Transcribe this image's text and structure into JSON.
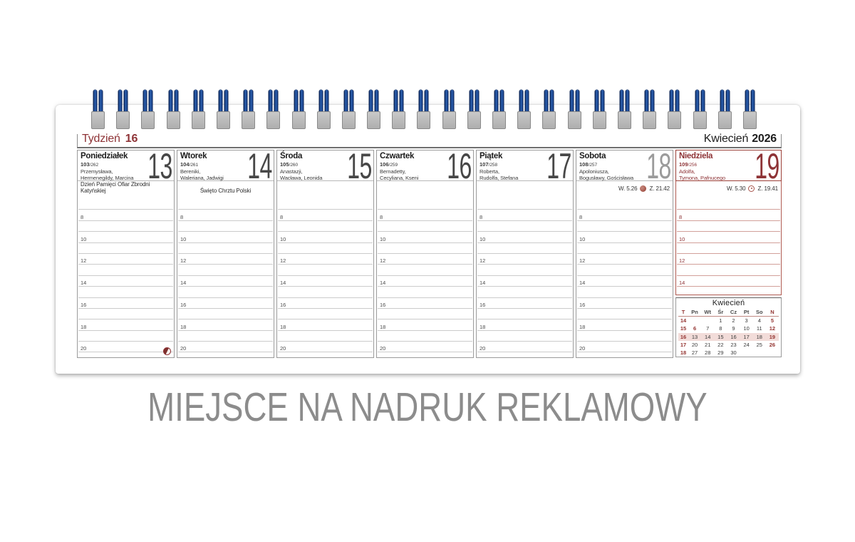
{
  "page": {
    "bottom_text": "MIEJSCE NA NADRUK REKLAMOWY"
  },
  "binding": {
    "coil_count": 27
  },
  "header": {
    "week_label": "Tydzień",
    "week_number": "16",
    "month_label": "Kwiecień",
    "year": "2026"
  },
  "hours": [
    "8",
    "10",
    "12",
    "14",
    "16",
    "18",
    "20"
  ],
  "days": [
    {
      "name": "Poniedziałek",
      "day_of_year": "103",
      "days_left": "262",
      "name_days": [
        "Przemysława,",
        "Hermenegildy, Marcina"
      ],
      "number": "13",
      "style": "weekday",
      "band": {
        "type": "holiday",
        "text": "Dzień Pamięci Ofiar Zbrodni Katyńskiej"
      },
      "moon_phase_icon": true
    },
    {
      "name": "Wtorek",
      "day_of_year": "104",
      "days_left": "261",
      "name_days": [
        "Bereniki,",
        "Waleriana, Jadwigi"
      ],
      "number": "14",
      "style": "weekday",
      "band": {
        "type": "holiday",
        "text": "Święto Chrztu Polski"
      }
    },
    {
      "name": "Środa",
      "day_of_year": "105",
      "days_left": "260",
      "name_days": [
        "Anastazji,",
        "Wacława, Leonida"
      ],
      "number": "15",
      "style": "weekday",
      "band": null
    },
    {
      "name": "Czwartek",
      "day_of_year": "106",
      "days_left": "259",
      "name_days": [
        "Bernadetty,",
        "Cecyliana, Kseni"
      ],
      "number": "16",
      "style": "weekday",
      "band": null
    },
    {
      "name": "Piątek",
      "day_of_year": "107",
      "days_left": "258",
      "name_days": [
        "Roberta,",
        "Rudolfa, Stefana"
      ],
      "number": "17",
      "style": "weekday",
      "band": null
    },
    {
      "name": "Sobota",
      "day_of_year": "108",
      "days_left": "257",
      "name_days": [
        "Apoloniusza,",
        "Bogusławy, Gościsława"
      ],
      "number": "18",
      "style": "saturday",
      "band": {
        "type": "sun",
        "rise_label": "W.",
        "rise_time": "5.26",
        "set_label": "Z.",
        "set_time": "21.42",
        "icon": "moon-icon"
      }
    },
    {
      "name": "Niedziela",
      "day_of_year": "109",
      "days_left": "256",
      "name_days": [
        "Adolfa,",
        "Tymona, Pafnucego"
      ],
      "number": "19",
      "style": "sunday",
      "band": {
        "type": "sun",
        "rise_label": "W.",
        "rise_time": "5.30",
        "set_label": "Z.",
        "set_time": "19.41",
        "icon": "sun-icon"
      }
    }
  ],
  "mini_calendar": {
    "title": "Kwiecień",
    "weekday_header": [
      "T",
      "Pn",
      "Wt",
      "Śr",
      "Cz",
      "Pt",
      "So",
      "N"
    ],
    "red_header_indices": [
      0,
      7
    ],
    "rows": [
      {
        "week": "14",
        "days": [
          "",
          "",
          "1",
          "2",
          "3",
          "4",
          "5"
        ],
        "red_indices": [
          6
        ],
        "highlight": false
      },
      {
        "week": "15",
        "days": [
          "6",
          "7",
          "8",
          "9",
          "10",
          "11",
          "12"
        ],
        "red_indices": [
          0,
          6
        ],
        "highlight": false
      },
      {
        "week": "16",
        "days": [
          "13",
          "14",
          "15",
          "16",
          "17",
          "18",
          "19"
        ],
        "red_indices": [
          6
        ],
        "highlight": true
      },
      {
        "week": "17",
        "days": [
          "20",
          "21",
          "22",
          "23",
          "24",
          "25",
          "26"
        ],
        "red_indices": [
          6
        ],
        "highlight": false
      },
      {
        "week": "18",
        "days": [
          "27",
          "28",
          "29",
          "30",
          "",
          "",
          ""
        ],
        "red_indices": [],
        "highlight": false
      }
    ]
  }
}
